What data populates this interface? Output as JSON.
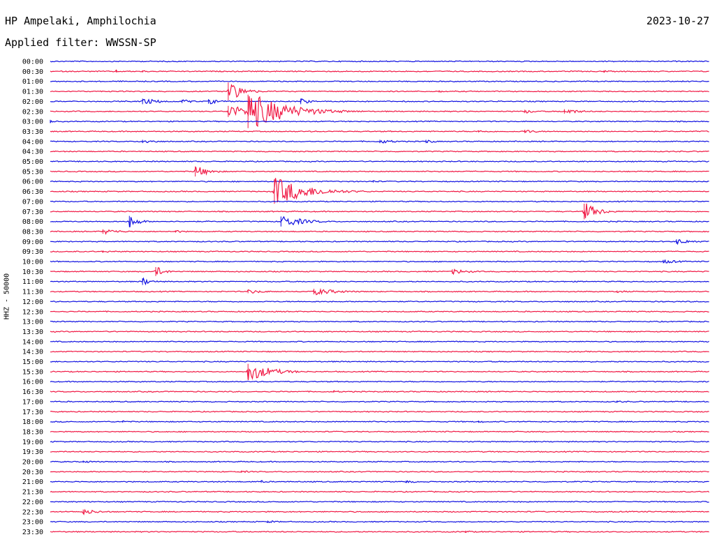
{
  "station": "HP Ampelaki, Amphilochia",
  "date": "2023-10-27",
  "filter": {
    "label": "Applied filter:",
    "value": "WWSSN-SP"
  },
  "channel_label": "HHZ - 50000",
  "colors": {
    "trace_a": "#1010e0",
    "trace_b": "#f01844"
  },
  "chart_data": {
    "type": "line",
    "title": "HP Ampelaki, Amphilochia",
    "ylabel": "HHZ - 50000",
    "xlabel": "",
    "grid": false,
    "rows": [
      "00:00",
      "00:30",
      "01:00",
      "01:30",
      "02:00",
      "02:30",
      "03:00",
      "03:30",
      "04:00",
      "04:30",
      "05:00",
      "05:30",
      "06:00",
      "06:30",
      "07:00",
      "07:30",
      "08:00",
      "08:30",
      "09:00",
      "09:30",
      "10:00",
      "10:30",
      "11:00",
      "11:30",
      "12:00",
      "12:30",
      "13:00",
      "13:30",
      "14:00",
      "14:30",
      "15:00",
      "15:30",
      "16:00",
      "16:30",
      "17:00",
      "17:30",
      "18:00",
      "18:30",
      "19:00",
      "19:30",
      "20:00",
      "20:30",
      "21:00",
      "21:30",
      "22:00",
      "22:30",
      "23:00",
      "23:30"
    ],
    "row_minutes": 30,
    "events": [
      {
        "row": "00:30",
        "t": 0.1,
        "amp": 2,
        "dur": 0.01
      },
      {
        "row": "00:30",
        "t": 0.14,
        "amp": 2,
        "dur": 0.01
      },
      {
        "row": "00:30",
        "t": 0.84,
        "amp": 2,
        "dur": 0.01
      },
      {
        "row": "01:30",
        "t": 0.27,
        "amp": 16,
        "dur": 0.03
      },
      {
        "row": "01:30",
        "t": 0.59,
        "amp": 2,
        "dur": 0.01
      },
      {
        "row": "02:00",
        "t": 0.14,
        "amp": 5,
        "dur": 0.04
      },
      {
        "row": "02:00",
        "t": 0.2,
        "amp": 3,
        "dur": 0.03
      },
      {
        "row": "02:00",
        "t": 0.24,
        "amp": 4,
        "dur": 0.03
      },
      {
        "row": "02:00",
        "t": 0.38,
        "amp": 5,
        "dur": 0.02
      },
      {
        "row": "02:30",
        "t": 0.27,
        "amp": 10,
        "dur": 0.05
      },
      {
        "row": "02:30",
        "t": 0.3,
        "amp": 30,
        "dur": 0.08
      },
      {
        "row": "02:30",
        "t": 0.72,
        "amp": 3,
        "dur": 0.03
      },
      {
        "row": "02:30",
        "t": 0.78,
        "amp": 4,
        "dur": 0.04
      },
      {
        "row": "03:00",
        "t": 0.0,
        "amp": 3,
        "dur": 0.01
      },
      {
        "row": "03:30",
        "t": 0.65,
        "amp": 2,
        "dur": 0.03
      },
      {
        "row": "03:30",
        "t": 0.72,
        "amp": 3,
        "dur": 0.03
      },
      {
        "row": "04:00",
        "t": 0.14,
        "amp": 3,
        "dur": 0.04
      },
      {
        "row": "04:00",
        "t": 0.5,
        "amp": 3,
        "dur": 0.04
      },
      {
        "row": "04:00",
        "t": 0.57,
        "amp": 3,
        "dur": 0.02
      },
      {
        "row": "05:30",
        "t": 0.22,
        "amp": 9,
        "dur": 0.03
      },
      {
        "row": "06:00",
        "t": 0.49,
        "amp": 2,
        "dur": 0.02
      },
      {
        "row": "06:30",
        "t": 0.34,
        "amp": 22,
        "dur": 0.07
      },
      {
        "row": "07:30",
        "t": 0.81,
        "amp": 14,
        "dur": 0.03
      },
      {
        "row": "08:00",
        "t": 0.12,
        "amp": 10,
        "dur": 0.02
      },
      {
        "row": "08:00",
        "t": 0.35,
        "amp": 9,
        "dur": 0.05
      },
      {
        "row": "08:30",
        "t": 0.08,
        "amp": 4,
        "dur": 0.04
      },
      {
        "row": "08:30",
        "t": 0.19,
        "amp": 2,
        "dur": 0.03
      },
      {
        "row": "09:00",
        "t": 0.95,
        "amp": 4,
        "dur": 0.04
      },
      {
        "row": "09:30",
        "t": 0.08,
        "amp": 2,
        "dur": 0.03
      },
      {
        "row": "10:00",
        "t": 0.93,
        "amp": 3,
        "dur": 0.04
      },
      {
        "row": "10:30",
        "t": 0.16,
        "amp": 8,
        "dur": 0.02
      },
      {
        "row": "10:30",
        "t": 0.61,
        "amp": 4,
        "dur": 0.04
      },
      {
        "row": "11:00",
        "t": 0.14,
        "amp": 6,
        "dur": 0.02
      },
      {
        "row": "11:30",
        "t": 0.3,
        "amp": 3,
        "dur": 0.04
      },
      {
        "row": "11:30",
        "t": 0.4,
        "amp": 5,
        "dur": 0.06
      },
      {
        "row": "11:30",
        "t": 0.86,
        "amp": 2,
        "dur": 0.03
      },
      {
        "row": "15:30",
        "t": 0.3,
        "amp": 14,
        "dur": 0.05
      },
      {
        "row": "16:30",
        "t": 0.43,
        "amp": 2,
        "dur": 0.02
      },
      {
        "row": "17:00",
        "t": 0.86,
        "amp": 2,
        "dur": 0.02
      },
      {
        "row": "18:00",
        "t": 0.11,
        "amp": 2,
        "dur": 0.02
      },
      {
        "row": "18:00",
        "t": 0.65,
        "amp": 2,
        "dur": 0.02
      },
      {
        "row": "20:00",
        "t": 0.05,
        "amp": 2,
        "dur": 0.03
      },
      {
        "row": "20:30",
        "t": 0.29,
        "amp": 2,
        "dur": 0.02
      },
      {
        "row": "21:00",
        "t": 0.32,
        "amp": 2,
        "dur": 0.02
      },
      {
        "row": "21:00",
        "t": 0.54,
        "amp": 2,
        "dur": 0.03
      },
      {
        "row": "22:30",
        "t": 0.05,
        "amp": 4,
        "dur": 0.04
      },
      {
        "row": "23:00",
        "t": 0.33,
        "amp": 2,
        "dur": 0.03
      },
      {
        "row": "23:30",
        "t": 0.63,
        "amp": 2,
        "dur": 0.02
      }
    ]
  }
}
